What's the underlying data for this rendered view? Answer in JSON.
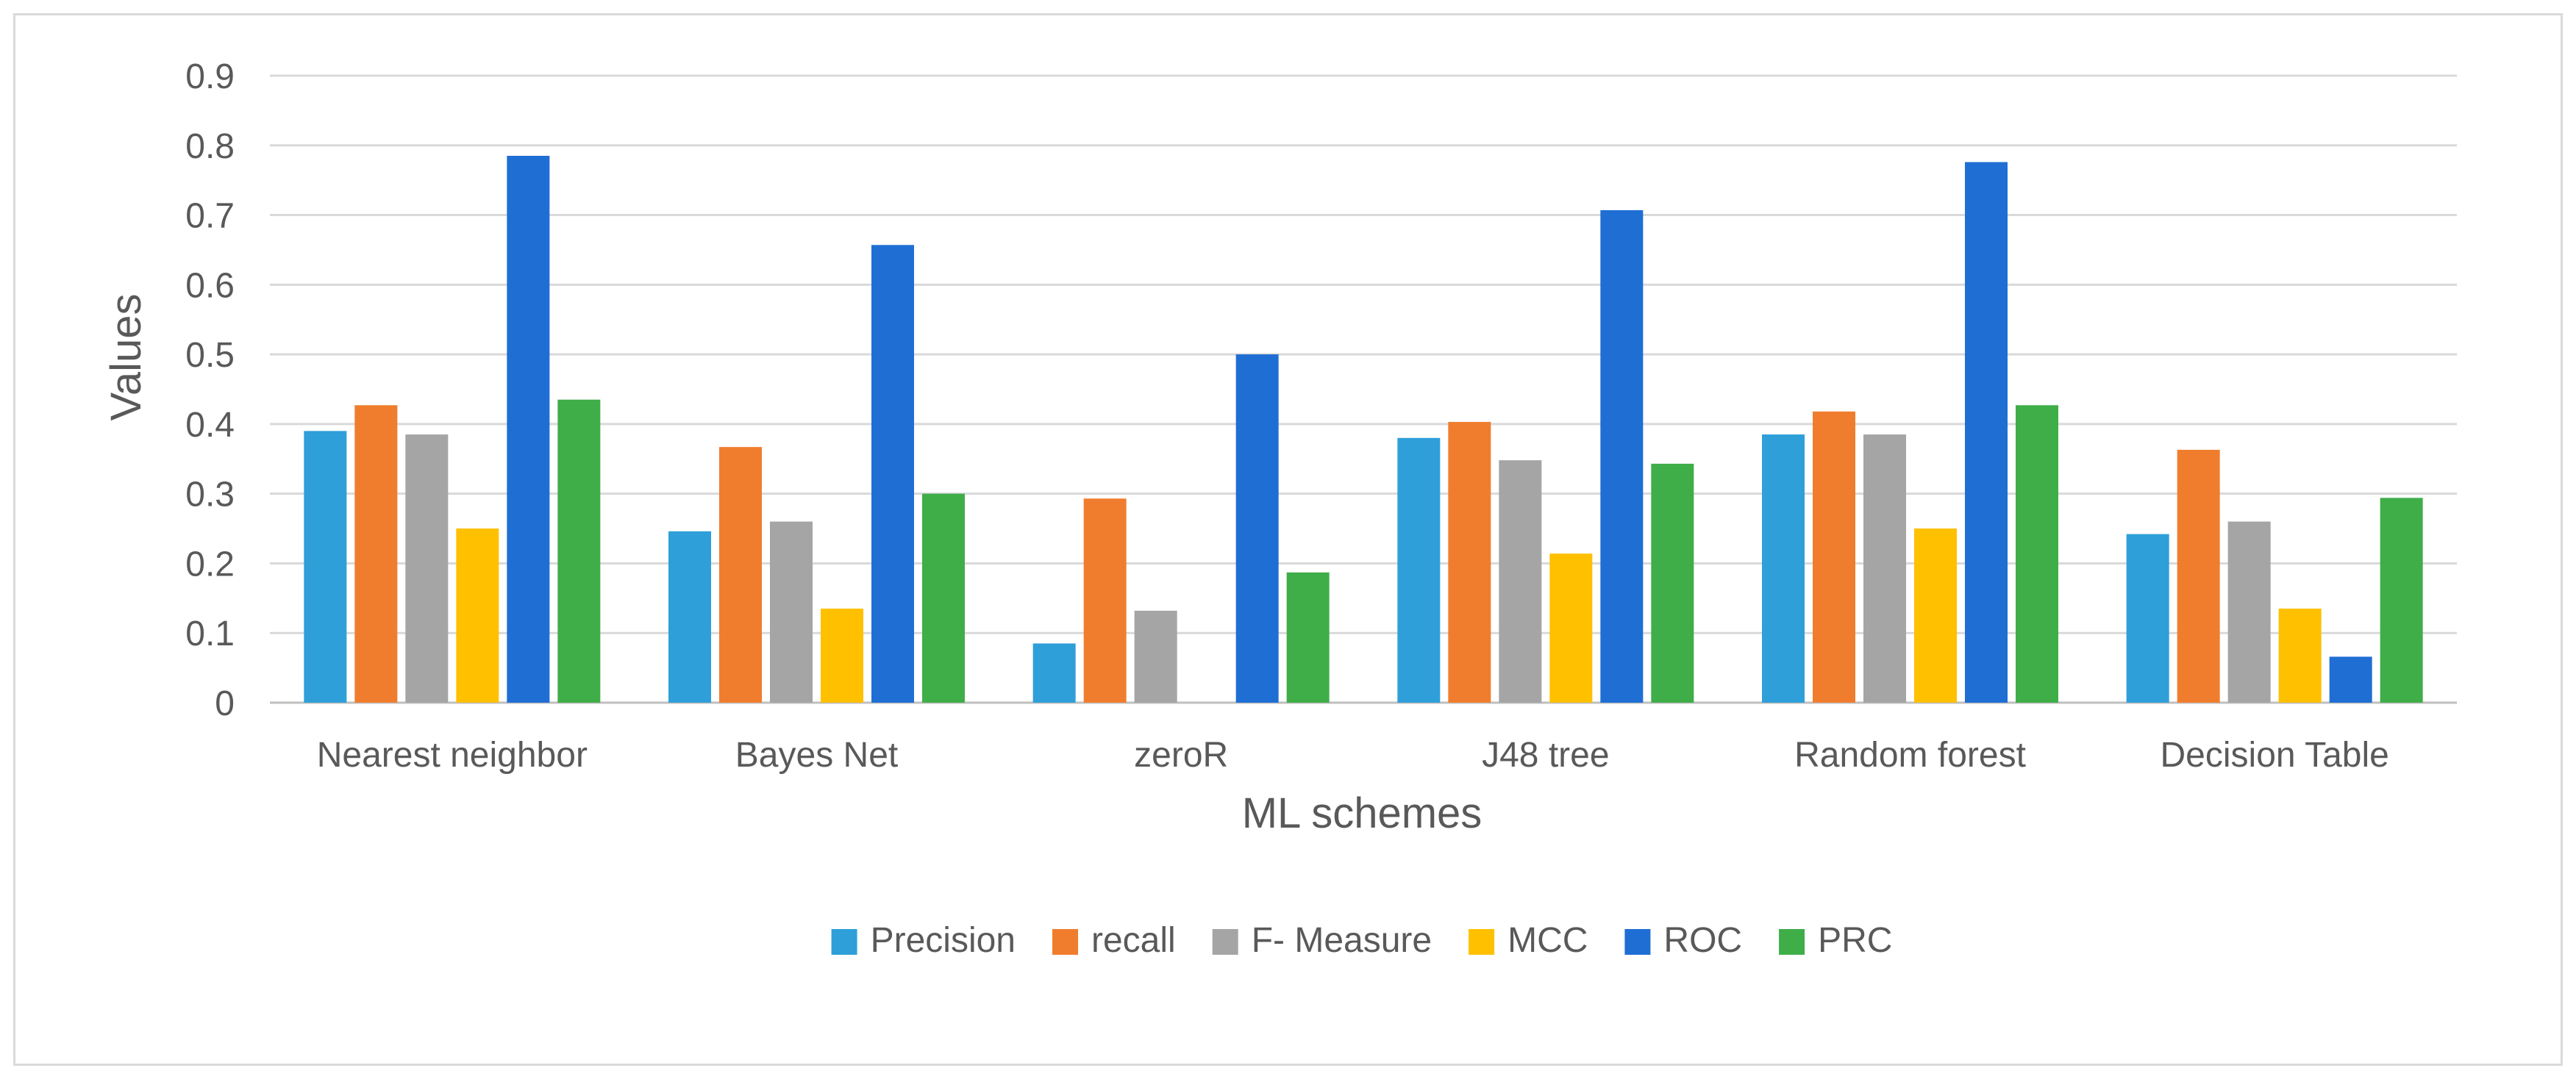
{
  "chart_data": {
    "type": "bar",
    "title": "",
    "xlabel": "ML schemes",
    "ylabel": "Values",
    "ylim": [
      0,
      0.9
    ],
    "yticks": [
      "0",
      "0.1",
      "0.2",
      "0.3",
      "0.4",
      "0.5",
      "0.6",
      "0.7",
      "0.8",
      "0.9"
    ],
    "grid": true,
    "legend_position": "bottom",
    "categories": [
      "Nearest neighbor",
      "Bayes Net",
      "zeroR",
      "J48   tree",
      "Random forest",
      "Decision Table"
    ],
    "series": [
      {
        "name": "Precision",
        "color": "#2e9fd9",
        "values": [
          0.39,
          0.246,
          0.085,
          0.38,
          0.385,
          0.242
        ]
      },
      {
        "name": "recall",
        "color": "#f07d2e",
        "values": [
          0.427,
          0.367,
          0.293,
          0.403,
          0.418,
          0.363
        ]
      },
      {
        "name": "F- Measure",
        "color": "#a5a5a5",
        "values": [
          0.385,
          0.26,
          0.132,
          0.348,
          0.385,
          0.26
        ]
      },
      {
        "name": "MCC",
        "color": "#ffc000",
        "values": [
          0.25,
          0.135,
          0,
          0.214,
          0.25,
          0.135
        ]
      },
      {
        "name": "ROC",
        "color": "#1f6ed4",
        "values": [
          0.785,
          0.657,
          0.5,
          0.707,
          0.776,
          0.066
        ]
      },
      {
        "name": "PRC",
        "color": "#3fae49",
        "values": [
          0.435,
          0.3,
          0.187,
          0.343,
          0.427,
          0.294
        ]
      }
    ]
  }
}
